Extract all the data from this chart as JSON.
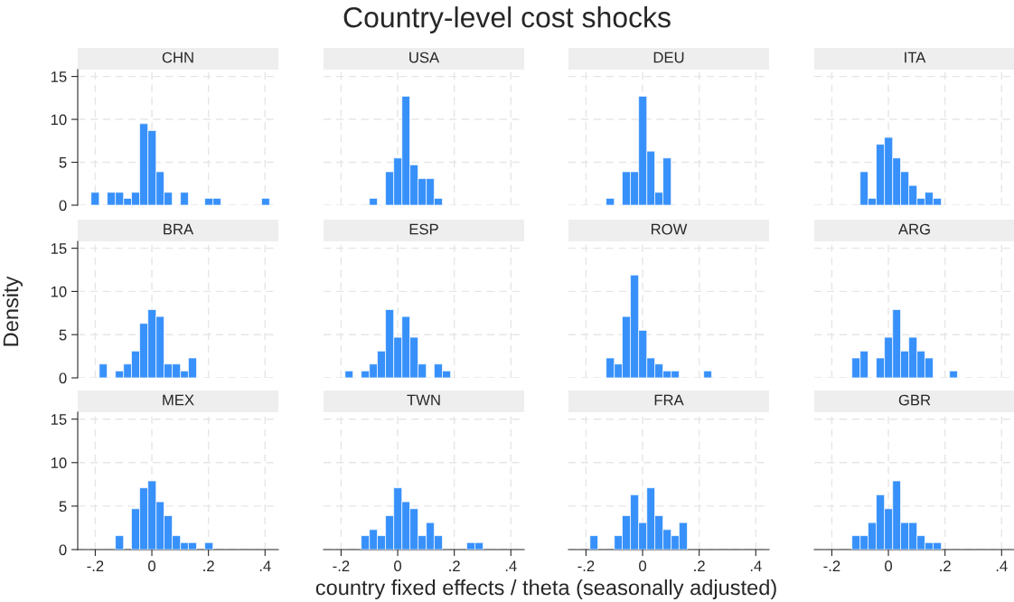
{
  "chart_data": [
    {
      "type": "histogram",
      "title": "CHN",
      "annotations": [
        "Country-level cost shocks"
      ],
      "xlabel": "country fixed effects / theta (seasonally adjusted)",
      "ylabel": "Density",
      "color": "#3891fa",
      "grid": true,
      "tick_labels": "y",
      "xlim": [
        -0.262,
        0.447
      ],
      "xticks": [
        -0.2,
        0,
        0.2,
        0.4
      ],
      "ylim": [
        0,
        15.8
      ],
      "yticks": [
        0,
        5,
        10,
        15
      ],
      "bins": [
        -0.215,
        -0.186,
        -0.158,
        -0.129,
        -0.1,
        -0.072,
        -0.043,
        -0.014,
        0.015,
        0.043,
        0.072,
        0.101,
        0.129,
        0.158,
        0.187,
        0.216,
        0.244,
        0.273,
        0.302,
        0.33,
        0.359,
        0.388,
        0.416
      ],
      "values": [
        1.5,
        0,
        1.5,
        1.5,
        0.8,
        1.5,
        9.5,
        8.7,
        3.9,
        1.5,
        0,
        1.5,
        0,
        0,
        0.8,
        0.8,
        0,
        0,
        0,
        0,
        0,
        0.8
      ]
    },
    {
      "type": "histogram",
      "title": "USA",
      "color": "#3891fa",
      "grid": true,
      "tick_labels": false,
      "xlim": [
        -0.262,
        0.447
      ],
      "xticks": [
        -0.2,
        0,
        0.2,
        0.4
      ],
      "ylim": [
        0,
        15.8
      ],
      "yticks": [
        0,
        5,
        10,
        15
      ],
      "bins": [
        -0.215,
        -0.186,
        -0.158,
        -0.129,
        -0.1,
        -0.072,
        -0.043,
        -0.014,
        0.015,
        0.043,
        0.072,
        0.101,
        0.129,
        0.158,
        0.187,
        0.216,
        0.244,
        0.273,
        0.302,
        0.33,
        0.359,
        0.388,
        0.416
      ],
      "values": [
        0,
        0,
        0,
        0,
        0.8,
        0,
        3.9,
        5.5,
        12.7,
        4.7,
        3.1,
        3.1,
        0.8,
        0,
        0,
        0,
        0,
        0,
        0,
        0,
        0,
        0
      ]
    },
    {
      "type": "histogram",
      "title": "DEU",
      "color": "#3891fa",
      "grid": true,
      "tick_labels": false,
      "xlim": [
        -0.262,
        0.447
      ],
      "xticks": [
        -0.2,
        0,
        0.2,
        0.4
      ],
      "ylim": [
        0,
        15.8
      ],
      "yticks": [
        0,
        5,
        10,
        15
      ],
      "bins": [
        -0.215,
        -0.186,
        -0.158,
        -0.129,
        -0.1,
        -0.072,
        -0.043,
        -0.014,
        0.015,
        0.043,
        0.072,
        0.101,
        0.129,
        0.158,
        0.187,
        0.216,
        0.244,
        0.273,
        0.302,
        0.33,
        0.359,
        0.388,
        0.416
      ],
      "values": [
        0,
        0,
        0,
        0.8,
        0,
        3.9,
        3.9,
        12.7,
        6.3,
        1.5,
        5.5,
        0,
        0,
        0,
        0,
        0,
        0,
        0,
        0,
        0,
        0,
        0
      ]
    },
    {
      "type": "histogram",
      "title": "ITA",
      "color": "#3891fa",
      "grid": true,
      "tick_labels": false,
      "xlim": [
        -0.262,
        0.447
      ],
      "xticks": [
        -0.2,
        0,
        0.2,
        0.4
      ],
      "ylim": [
        0,
        15.8
      ],
      "yticks": [
        0,
        5,
        10,
        15
      ],
      "bins": [
        -0.215,
        -0.186,
        -0.158,
        -0.129,
        -0.1,
        -0.072,
        -0.043,
        -0.014,
        0.015,
        0.043,
        0.072,
        0.101,
        0.129,
        0.158,
        0.187,
        0.216,
        0.244,
        0.273,
        0.302,
        0.33,
        0.359,
        0.388,
        0.416
      ],
      "values": [
        0,
        0,
        0,
        0,
        3.9,
        0.8,
        7.1,
        7.9,
        5.5,
        3.9,
        2.3,
        0.8,
        1.5,
        0.8,
        0,
        0,
        0,
        0,
        0,
        0,
        0,
        0
      ]
    },
    {
      "type": "histogram",
      "title": "BRA",
      "color": "#3891fa",
      "grid": true,
      "tick_labels": "y",
      "xlim": [
        -0.262,
        0.447
      ],
      "xticks": [
        -0.2,
        0,
        0.2,
        0.4
      ],
      "ylim": [
        0,
        15.8
      ],
      "yticks": [
        0,
        5,
        10,
        15
      ],
      "bins": [
        -0.215,
        -0.186,
        -0.158,
        -0.129,
        -0.1,
        -0.072,
        -0.043,
        -0.014,
        0.015,
        0.043,
        0.072,
        0.101,
        0.129,
        0.158,
        0.187,
        0.216,
        0.244,
        0.273,
        0.302,
        0.33,
        0.359,
        0.388,
        0.416
      ],
      "values": [
        0,
        1.6,
        0,
        0.8,
        1.6,
        3.1,
        6.3,
        7.9,
        7.1,
        1.6,
        1.6,
        0.8,
        2.3,
        0,
        0,
        0,
        0,
        0,
        0,
        0,
        0,
        0
      ]
    },
    {
      "type": "histogram",
      "title": "ESP",
      "color": "#3891fa",
      "grid": true,
      "tick_labels": false,
      "xlim": [
        -0.262,
        0.447
      ],
      "xticks": [
        -0.2,
        0,
        0.2,
        0.4
      ],
      "ylim": [
        0,
        15.8
      ],
      "yticks": [
        0,
        5,
        10,
        15
      ],
      "bins": [
        -0.215,
        -0.186,
        -0.158,
        -0.129,
        -0.1,
        -0.072,
        -0.043,
        -0.014,
        0.015,
        0.043,
        0.072,
        0.101,
        0.129,
        0.158,
        0.187,
        0.216,
        0.244,
        0.273,
        0.302,
        0.33,
        0.359,
        0.388,
        0.416
      ],
      "values": [
        0,
        0.8,
        0,
        0.8,
        1.6,
        3.1,
        7.9,
        4.7,
        7.1,
        4.7,
        1.6,
        0,
        1.6,
        0.8,
        0,
        0,
        0,
        0,
        0,
        0,
        0,
        0
      ]
    },
    {
      "type": "histogram",
      "title": "ROW",
      "color": "#3891fa",
      "grid": true,
      "tick_labels": false,
      "xlim": [
        -0.262,
        0.447
      ],
      "xticks": [
        -0.2,
        0,
        0.2,
        0.4
      ],
      "ylim": [
        0,
        15.8
      ],
      "yticks": [
        0,
        5,
        10,
        15
      ],
      "bins": [
        -0.215,
        -0.186,
        -0.158,
        -0.129,
        -0.1,
        -0.072,
        -0.043,
        -0.014,
        0.015,
        0.043,
        0.072,
        0.101,
        0.129,
        0.158,
        0.187,
        0.216,
        0.244,
        0.273,
        0.302,
        0.33,
        0.359,
        0.388,
        0.416
      ],
      "values": [
        0,
        0,
        0,
        2.3,
        1.6,
        7.1,
        11.9,
        5.5,
        2.3,
        1.6,
        0.8,
        0.8,
        0,
        0,
        0,
        0.8,
        0,
        0,
        0,
        0,
        0,
        0
      ]
    },
    {
      "type": "histogram",
      "title": "ARG",
      "color": "#3891fa",
      "grid": true,
      "tick_labels": false,
      "xlim": [
        -0.262,
        0.447
      ],
      "xticks": [
        -0.2,
        0,
        0.2,
        0.4
      ],
      "ylim": [
        0,
        15.8
      ],
      "yticks": [
        0,
        5,
        10,
        15
      ],
      "bins": [
        -0.215,
        -0.186,
        -0.158,
        -0.129,
        -0.1,
        -0.072,
        -0.043,
        -0.014,
        0.015,
        0.043,
        0.072,
        0.101,
        0.129,
        0.158,
        0.187,
        0.216,
        0.244,
        0.273,
        0.302,
        0.33,
        0.359,
        0.388,
        0.416
      ],
      "values": [
        0,
        0,
        0,
        2.3,
        3.1,
        0,
        2.3,
        4.7,
        7.9,
        3.1,
        4.7,
        3.1,
        2.3,
        0,
        0,
        0.8,
        0,
        0,
        0,
        0,
        0,
        0
      ]
    },
    {
      "type": "histogram",
      "title": "MEX",
      "color": "#3891fa",
      "grid": true,
      "xlim": [
        -0.262,
        0.447
      ],
      "xticks": [
        {
          "value": -0.2,
          "label": "-.2"
        },
        0,
        {
          "value": 0.2,
          "label": ".2"
        },
        {
          "value": 0.4,
          "label": ".4"
        }
      ],
      "ylim": [
        0,
        15.8
      ],
      "yticks": [
        0,
        5,
        10,
        15
      ],
      "bins": [
        -0.215,
        -0.186,
        -0.158,
        -0.129,
        -0.1,
        -0.072,
        -0.043,
        -0.014,
        0.015,
        0.043,
        0.072,
        0.101,
        0.129,
        0.158,
        0.187,
        0.216,
        0.244,
        0.273,
        0.302,
        0.33,
        0.359,
        0.388,
        0.416
      ],
      "values": [
        0,
        0,
        0,
        1.6,
        0,
        4.7,
        7.1,
        7.9,
        5.5,
        3.9,
        1.6,
        0.8,
        0.8,
        0,
        0.8,
        0,
        0,
        0,
        0,
        0,
        0,
        0
      ]
    },
    {
      "type": "histogram",
      "title": "TWN",
      "color": "#3891fa",
      "grid": true,
      "tick_labels": "x",
      "xlim": [
        -0.262,
        0.447
      ],
      "xticks": [
        {
          "value": -0.2,
          "label": "-.2"
        },
        0,
        {
          "value": 0.2,
          "label": ".2"
        },
        {
          "value": 0.4,
          "label": ".4"
        }
      ],
      "ylim": [
        0,
        15.8
      ],
      "yticks": [
        0,
        5,
        10,
        15
      ],
      "bins": [
        -0.215,
        -0.186,
        -0.158,
        -0.129,
        -0.1,
        -0.072,
        -0.043,
        -0.014,
        0.015,
        0.043,
        0.072,
        0.101,
        0.129,
        0.158,
        0.187,
        0.216,
        0.244,
        0.273,
        0.302,
        0.33,
        0.359,
        0.388,
        0.416
      ],
      "values": [
        0,
        0,
        0,
        1.6,
        2.3,
        1.6,
        3.9,
        7.1,
        5.5,
        4.7,
        1.6,
        3.1,
        1.6,
        0,
        0,
        0,
        0.8,
        0.8,
        0,
        0,
        0,
        0
      ]
    },
    {
      "type": "histogram",
      "title": "FRA",
      "color": "#3891fa",
      "grid": true,
      "tick_labels": "x",
      "xlim": [
        -0.262,
        0.447
      ],
      "xticks": [
        {
          "value": -0.2,
          "label": "-.2"
        },
        0,
        {
          "value": 0.2,
          "label": ".2"
        },
        {
          "value": 0.4,
          "label": ".4"
        }
      ],
      "ylim": [
        0,
        15.8
      ],
      "yticks": [
        0,
        5,
        10,
        15
      ],
      "bins": [
        -0.215,
        -0.186,
        -0.158,
        -0.129,
        -0.1,
        -0.072,
        -0.043,
        -0.014,
        0.015,
        0.043,
        0.072,
        0.101,
        0.129,
        0.158,
        0.187,
        0.216,
        0.244,
        0.273,
        0.302,
        0.33,
        0.359,
        0.388,
        0.416
      ],
      "values": [
        0,
        1.6,
        0,
        0,
        1.6,
        3.9,
        6.3,
        3.1,
        7.1,
        3.9,
        2.3,
        1.6,
        3.1,
        0,
        0,
        0,
        0,
        0,
        0,
        0,
        0,
        0
      ]
    },
    {
      "type": "histogram",
      "title": "GBR",
      "color": "#3891fa",
      "grid": true,
      "tick_labels": "x",
      "xlim": [
        -0.262,
        0.447
      ],
      "xticks": [
        {
          "value": -0.2,
          "label": "-.2"
        },
        0,
        {
          "value": 0.2,
          "label": ".2"
        },
        {
          "value": 0.4,
          "label": ".4"
        }
      ],
      "ylim": [
        0,
        15.8
      ],
      "yticks": [
        0,
        5,
        10,
        15
      ],
      "bins": [
        -0.215,
        -0.186,
        -0.158,
        -0.129,
        -0.1,
        -0.072,
        -0.043,
        -0.014,
        0.015,
        0.043,
        0.072,
        0.101,
        0.129,
        0.158,
        0.187,
        0.216,
        0.244,
        0.273,
        0.302,
        0.33,
        0.359,
        0.388,
        0.416
      ],
      "values": [
        0,
        0,
        0,
        1.6,
        1.6,
        3.1,
        6.3,
        4.7,
        7.9,
        3.1,
        3.1,
        1.6,
        0.8,
        0.8,
        0,
        0,
        0,
        0,
        0,
        0,
        0,
        0
      ]
    }
  ]
}
